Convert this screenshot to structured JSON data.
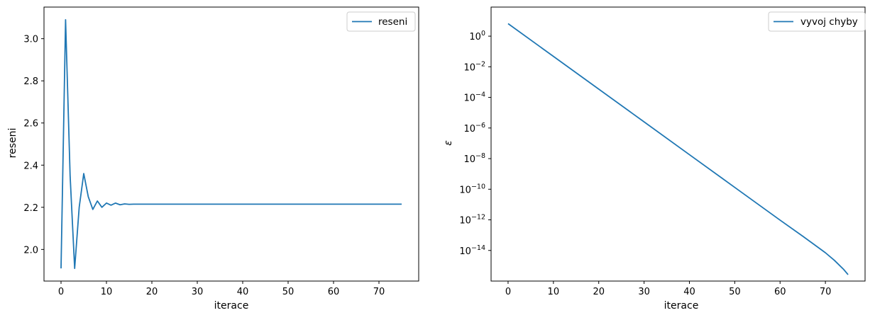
{
  "colors": {
    "series": "#1f77b4",
    "axes": "#000000",
    "legend_border": "#cccccc"
  },
  "chart_data": [
    {
      "type": "line",
      "title": "",
      "xlabel": "iterace",
      "ylabel": "reseni",
      "xlim": [
        -3.75,
        78.75
      ],
      "ylim": [
        1.85,
        3.15
      ],
      "xticks": [
        0,
        10,
        20,
        30,
        40,
        50,
        60,
        70
      ],
      "xtick_labels": [
        "0",
        "10",
        "20",
        "30",
        "40",
        "50",
        "60",
        "70"
      ],
      "yticks": [
        2.0,
        2.2,
        2.4,
        2.6,
        2.8,
        3.0
      ],
      "ytick_labels": [
        "2.0",
        "2.2",
        "2.4",
        "2.6",
        "2.8",
        "3.0"
      ],
      "yscale": "linear",
      "grid": false,
      "legend_position": "upper right",
      "series": [
        {
          "name": "reseni",
          "x": [
            0,
            1,
            2,
            3,
            4,
            5,
            6,
            7,
            8,
            9,
            10,
            11,
            12,
            13,
            14,
            15,
            16,
            17,
            18,
            19,
            20,
            75
          ],
          "y": [
            1.91,
            3.09,
            2.35,
            1.91,
            2.2,
            2.36,
            2.25,
            2.19,
            2.23,
            2.2,
            2.22,
            2.21,
            2.22,
            2.212,
            2.216,
            2.214,
            2.215,
            2.215,
            2.215,
            2.215,
            2.215,
            2.215
          ]
        }
      ]
    },
    {
      "type": "line",
      "title": "",
      "xlabel": "iterace",
      "ylabel": "ε",
      "xlim": [
        -3.75,
        78.75
      ],
      "ylim_exponent": [
        -16.0,
        1.9
      ],
      "yscale": "log",
      "xticks": [
        0,
        10,
        20,
        30,
        40,
        50,
        60,
        70
      ],
      "xtick_labels": [
        "0",
        "10",
        "20",
        "30",
        "40",
        "50",
        "60",
        "70"
      ],
      "ytick_exponents": [
        0,
        -2,
        -4,
        -6,
        -8,
        -10,
        -12,
        -14
      ],
      "ytick_labels": [
        {
          "base": "10",
          "exp": "0"
        },
        {
          "base": "10",
          "exp": "−2"
        },
        {
          "base": "10",
          "exp": "−4"
        },
        {
          "base": "10",
          "exp": "−6"
        },
        {
          "base": "10",
          "exp": "−8"
        },
        {
          "base": "10",
          "exp": "−10"
        },
        {
          "base": "10",
          "exp": "−12"
        },
        {
          "base": "10",
          "exp": "−14"
        }
      ],
      "grid": false,
      "legend_position": "upper right",
      "series": [
        {
          "name": "vyvoj chyby",
          "x": [
            0,
            10,
            20,
            30,
            40,
            50,
            60,
            65,
            70,
            72,
            74,
            75
          ],
          "y_exponent": [
            0.82,
            -1.32,
            -3.46,
            -5.6,
            -7.74,
            -9.88,
            -12.02,
            -13.07,
            -14.15,
            -14.65,
            -15.23,
            -15.58
          ]
        }
      ]
    }
  ]
}
